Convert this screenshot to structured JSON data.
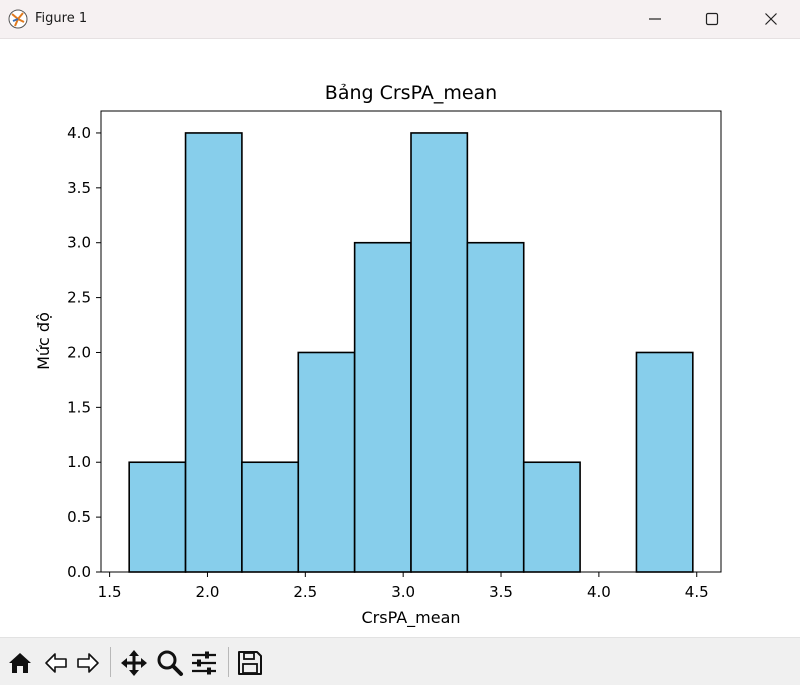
{
  "window": {
    "title": "Figure 1"
  },
  "toolbar": {
    "buttons": [
      "home-icon",
      "back-arrow-icon",
      "forward-arrow-icon",
      "pan-icon",
      "zoom-icon",
      "configure-subplots-icon",
      "save-icon"
    ]
  },
  "chart_data": {
    "type": "bar",
    "title": "Bảng CrsPA_mean",
    "xlabel": "CrsPA_mean",
    "ylabel": "Mức độ",
    "bins": [
      {
        "x0": 1.6,
        "x1": 1.888,
        "value": 1
      },
      {
        "x0": 1.888,
        "x1": 2.176,
        "value": 4
      },
      {
        "x0": 2.176,
        "x1": 2.464,
        "value": 1
      },
      {
        "x0": 2.464,
        "x1": 2.752,
        "value": 2
      },
      {
        "x0": 2.752,
        "x1": 3.04,
        "value": 3
      },
      {
        "x0": 3.04,
        "x1": 3.328,
        "value": 4
      },
      {
        "x0": 3.328,
        "x1": 3.616,
        "value": 3
      },
      {
        "x0": 3.616,
        "x1": 3.904,
        "value": 1
      },
      {
        "x0": 3.904,
        "x1": 4.192,
        "value": 0
      },
      {
        "x0": 4.192,
        "x1": 4.48,
        "value": 2
      }
    ],
    "xlim": [
      1.456,
      4.624
    ],
    "ylim": [
      0,
      4.2
    ],
    "xticks": [
      1.5,
      2.0,
      2.5,
      3.0,
      3.5,
      4.0,
      4.5
    ],
    "xtick_labels": [
      "1.5",
      "2.0",
      "2.5",
      "3.0",
      "3.5",
      "4.0",
      "4.5"
    ],
    "yticks": [
      0,
      0.5,
      1,
      1.5,
      2,
      2.5,
      3,
      3.5,
      4
    ],
    "ytick_labels": [
      "0.0",
      "0.5",
      "1.0",
      "1.5",
      "2.0",
      "2.5",
      "3.0",
      "3.5",
      "4.0"
    ],
    "grid": false,
    "bar_color": "#87ceeb",
    "edge_color": "#000000"
  }
}
